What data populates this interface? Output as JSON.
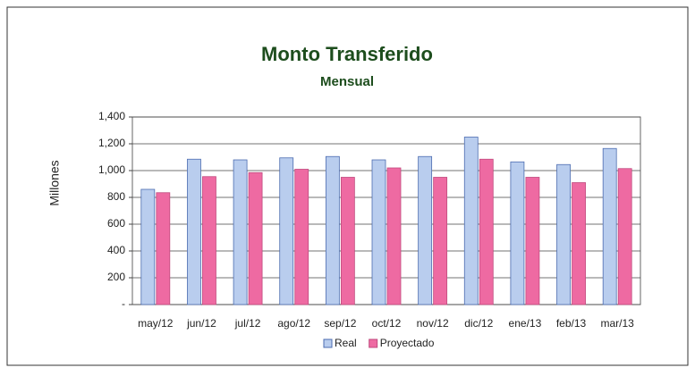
{
  "chart_data": {
    "type": "bar",
    "title": "Monto Transferido",
    "subtitle": "Mensual",
    "y_label": "Millones",
    "categories": [
      "may/12",
      "jun/12",
      "jul/12",
      "ago/12",
      "sep/12",
      "oct/12",
      "nov/12",
      "dic/12",
      "ene/13",
      "feb/13",
      "mar/13"
    ],
    "series": [
      {
        "name": "Real",
        "color": "#b9cdee",
        "values": [
          860,
          1085,
          1080,
          1095,
          1105,
          1080,
          1105,
          1250,
          1065,
          1045,
          1165
        ]
      },
      {
        "name": "Proyectado",
        "color": "#ee6aa2",
        "values": [
          835,
          955,
          985,
          1010,
          950,
          1020,
          950,
          1085,
          950,
          910,
          1015
        ]
      }
    ],
    "ylim": [
      0,
      1400
    ],
    "yticks": [
      {
        "value": 0,
        "label": "-"
      },
      200,
      400,
      600,
      800,
      {
        "value": 1000,
        "label": "1,000"
      },
      {
        "value": 1200,
        "label": "1,200"
      },
      {
        "value": 1400,
        "label": "1,400"
      }
    ],
    "grid": true,
    "legend": "bottom"
  }
}
